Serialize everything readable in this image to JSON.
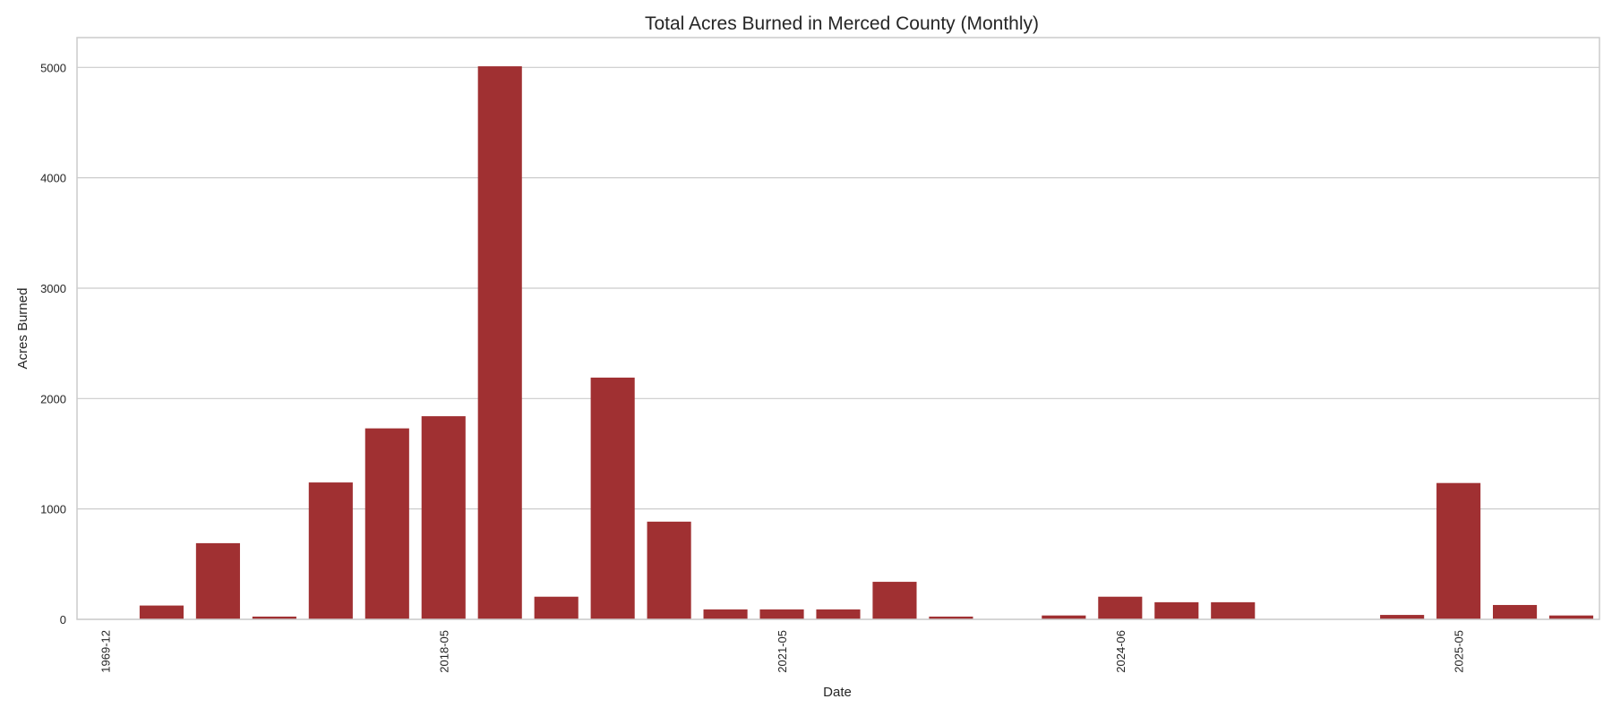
{
  "chart_data": {
    "type": "bar",
    "title": "Total Acres Burned in Merced County (Monthly)",
    "xlabel": "Date",
    "ylabel": "Acres Burned",
    "ylim": [
      0,
      5270
    ],
    "yticks": [
      0,
      1000,
      2000,
      3000,
      4000,
      5000
    ],
    "xtick_labels": [
      "1969-12",
      "2018-05",
      "2021-05",
      "2024-06",
      "2025-05"
    ],
    "xtick_positions": [
      0,
      6,
      12,
      18,
      24
    ],
    "values": [
      0,
      125,
      690,
      25,
      1240,
      1730,
      1840,
      5010,
      205,
      2190,
      885,
      90,
      90,
      90,
      340,
      25,
      0,
      35,
      205,
      155,
      155,
      0,
      0,
      40,
      1235,
      130,
      35
    ],
    "bar_color": "#a03032",
    "grid": true,
    "legend": "none"
  }
}
